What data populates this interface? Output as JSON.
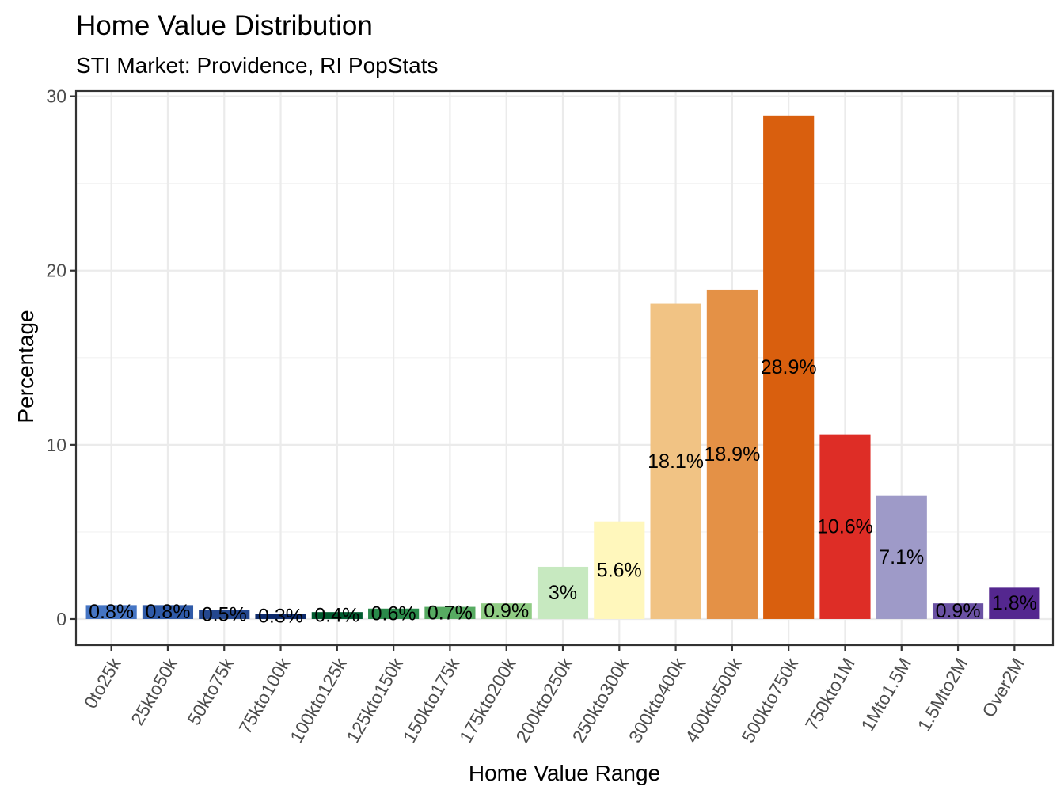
{
  "chart_data": {
    "type": "bar",
    "title": "Home Value Distribution",
    "subtitle": "STI Market: Providence, RI PopStats",
    "xlabel": "Home Value Range",
    "ylabel": "Percentage",
    "ylim": [
      -1.5,
      30.3
    ],
    "yticks": [
      0,
      10,
      20,
      30
    ],
    "grid": true,
    "legend": "none",
    "categories": [
      "0to25k",
      "25kto50k",
      "50kto75k",
      "75kto100k",
      "100kto125k",
      "125kto150k",
      "150kto175k",
      "175kto200k",
      "200kto250k",
      "250kto300k",
      "300kto400k",
      "400kto500k",
      "500kto750k",
      "750kto1M",
      "1Mto1.5M",
      "1.5Mto2M",
      "Over2M"
    ],
    "values": [
      0.8,
      0.8,
      0.5,
      0.3,
      0.4,
      0.6,
      0.7,
      0.9,
      3,
      5.6,
      18.1,
      18.9,
      28.9,
      10.6,
      7.1,
      0.9,
      1.8
    ],
    "labels": [
      "0.8%",
      "0.8%",
      "0.5%",
      "0.3%",
      "0.4%",
      "0.6%",
      "0.7%",
      "0.9%",
      "3%",
      "5.6%",
      "18.1%",
      "18.9%",
      "28.9%",
      "10.6%",
      "7.1%",
      "0.9%",
      "1.8%"
    ],
    "colors": [
      "#4575c4",
      "#2f5aa8",
      "#24478e",
      "#0d2a6b",
      "#005a2e",
      "#2a8a4a",
      "#57ab62",
      "#90cc84",
      "#c7e9c0",
      "#fff7bc",
      "#f1c384",
      "#e49146",
      "#d95f0e",
      "#de2d26",
      "#9e9ac8",
      "#6a51a3",
      "#54278f"
    ]
  }
}
